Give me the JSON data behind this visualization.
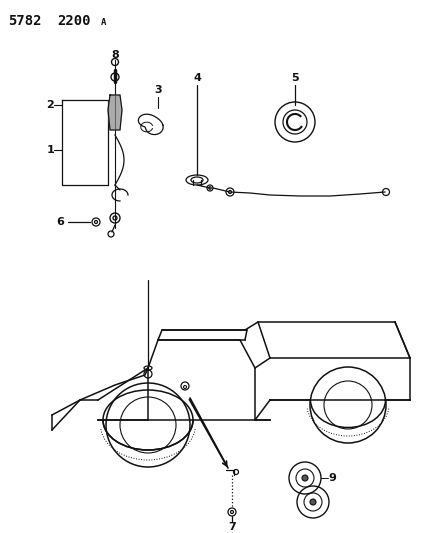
{
  "bg_color": "#ffffff",
  "line_color": "#111111",
  "fig_width": 4.28,
  "fig_height": 5.33,
  "dpi": 100,
  "header1": "5782",
  "header2": "2200",
  "header3": "A"
}
